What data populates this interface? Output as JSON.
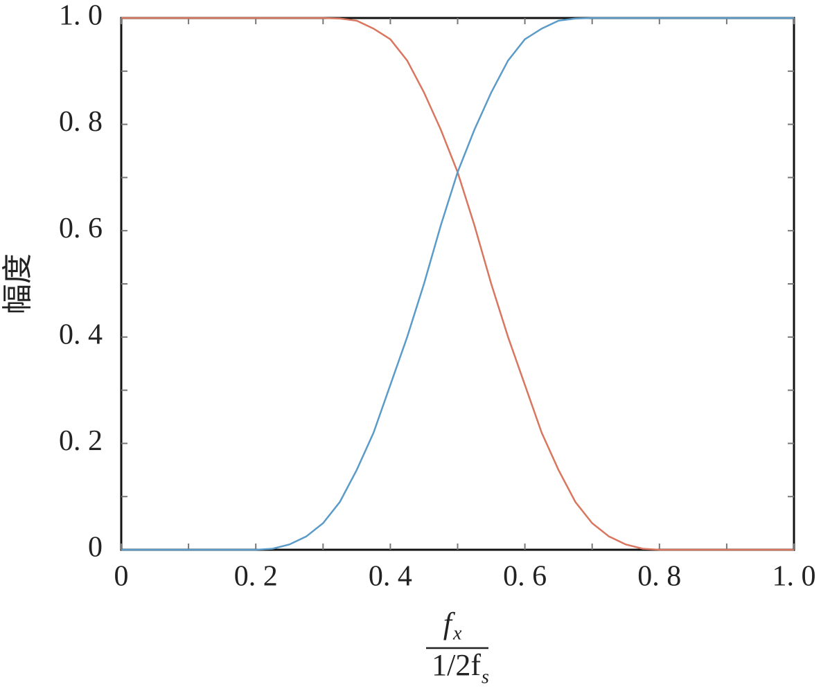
{
  "chart_data": {
    "type": "line",
    "ylabel": "幅度",
    "xlabel": {
      "numerator": "f",
      "numerator_sub": "x",
      "denominator": "1/2f",
      "denominator_sub": "s"
    },
    "x": [
      0,
      0.2,
      0.225,
      0.25,
      0.275,
      0.3,
      0.325,
      0.35,
      0.375,
      0.4,
      0.425,
      0.45,
      0.475,
      0.5,
      0.525,
      0.55,
      0.575,
      0.6,
      0.625,
      0.65,
      0.675,
      0.7,
      0.725,
      0.75,
      0.775,
      0.8,
      1
    ],
    "series": [
      {
        "color": "#d9765f",
        "values": [
          1,
          1,
          1,
          1,
          1,
          1,
          0.999,
          0.995,
          0.98,
          0.96,
          0.92,
          0.86,
          0.79,
          0.71,
          0.61,
          0.5,
          0.4,
          0.31,
          0.22,
          0.15,
          0.09,
          0.05,
          0.025,
          0.01,
          0.002,
          0,
          0
        ]
      },
      {
        "color": "#5b9bc8",
        "values": [
          0,
          0,
          0.002,
          0.01,
          0.025,
          0.05,
          0.09,
          0.15,
          0.22,
          0.31,
          0.4,
          0.5,
          0.61,
          0.71,
          0.79,
          0.86,
          0.92,
          0.96,
          0.98,
          0.995,
          0.999,
          1,
          1,
          1,
          1,
          1,
          1
        ]
      }
    ],
    "xlim": [
      0,
      1
    ],
    "ylim": [
      0,
      1
    ],
    "xticks": [
      0,
      {
        "value": 0.2,
        "label": "0. 2"
      },
      {
        "value": 0.4,
        "label": "0. 4"
      },
      {
        "value": 0.6,
        "label": "0. 6"
      },
      {
        "value": 0.8,
        "label": "0. 8"
      },
      {
        "value": 1,
        "label": "1. 0"
      }
    ],
    "yticks": [
      0,
      {
        "value": 0.2,
        "label": "0. 2"
      },
      {
        "value": 0.4,
        "label": "0. 4"
      },
      {
        "value": 0.6,
        "label": "0. 6"
      },
      {
        "value": 0.8,
        "label": "0. 8"
      },
      {
        "value": 1,
        "label": "1. 0"
      }
    ],
    "xminorticks": [
      0.1,
      0.3,
      0.5,
      0.7,
      0.9
    ],
    "yminorticks": [
      0.1,
      0.3,
      0.5,
      0.7,
      0.9
    ],
    "grid": false
  }
}
